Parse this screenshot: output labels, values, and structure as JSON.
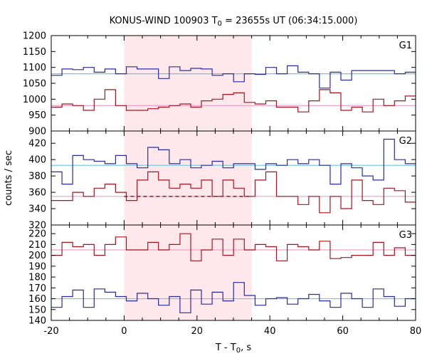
{
  "chart_data": {
    "type": "line",
    "title_main": "KONUS-WIND 100903 T",
    "title_sub": "0",
    "title_rest": " = 23655s UT (06:34:15.000)",
    "xlabel_main": "T - T",
    "xlabel_sub": "0",
    "xlabel_rest": ", s",
    "ylabel": "counts / sec",
    "xlim": [
      -20,
      80
    ],
    "xticks": [
      -20,
      0,
      20,
      40,
      60,
      80
    ],
    "shaded_interval": [
      0,
      35
    ],
    "bin_width": 2.944,
    "bin_start": -20,
    "colors": {
      "blue": "#2a2aa8",
      "red": "#a8141e",
      "cyan": "#66c8e6",
      "pink": "#f0a0c8",
      "shade": "#ffe8ec",
      "dashed": "#7a0f0f"
    },
    "panels": [
      {
        "label": "G1",
        "ylim": [
          900,
          1200
        ],
        "yticks": [
          900,
          950,
          1000,
          1050,
          1100,
          1150,
          1200
        ],
        "series": [
          {
            "color_key": "blue",
            "background_level": 1080,
            "values": [
              1075,
              1095,
              1093,
              1100,
              1085,
              1095,
              1080,
              1102,
              1095,
              1095,
              1065,
              1102,
              1090,
              1097,
              1095,
              1075,
              1080,
              1055,
              1080,
              1078,
              1100,
              1080,
              1105,
              1085,
              1080,
              1035,
              1085,
              1060,
              1090,
              1090,
              1090,
              1090,
              1080,
              1085,
              1085
            ]
          },
          {
            "color_key": "red",
            "background_level": 980,
            "values": [
              975,
              985,
              980,
              965,
              1000,
              1030,
              980,
              965,
              965,
              970,
              975,
              980,
              985,
              975,
              995,
              1000,
              1015,
              1020,
              990,
              985,
              995,
              975,
              975,
              960,
              995,
              1030,
              1020,
              965,
              975,
              960,
              1000,
              980,
              995,
              1010,
              985
            ]
          }
        ]
      },
      {
        "label": "G2",
        "ylim": [
          320,
          435
        ],
        "yticks": [
          320,
          340,
          360,
          380,
          400,
          420
        ],
        "dashed_level": 355,
        "series": [
          {
            "color_key": "blue",
            "background_level": 393,
            "values": [
              385,
              370,
              405,
              400,
              398,
              395,
              405,
              395,
              390,
              415,
              412,
              395,
              400,
              390,
              393,
              398,
              390,
              395,
              395,
              388,
              395,
              393,
              400,
              395,
              400,
              393,
              370,
              395,
              390,
              380,
              375,
              425,
              400,
              395,
              405
            ]
          },
          {
            "color_key": "red",
            "background_level": 355,
            "values": [
              350,
              350,
              360,
              355,
              365,
              370,
              360,
              350,
              375,
              385,
              375,
              365,
              370,
              365,
              375,
              355,
              375,
              365,
              355,
              375,
              385,
              355,
              355,
              345,
              355,
              335,
              355,
              340,
              375,
              350,
              345,
              365,
              362,
              348,
              355
            ]
          }
        ]
      },
      {
        "label": "G3",
        "ylim": [
          140,
          228
        ],
        "yticks": [
          140,
          150,
          160,
          170,
          180,
          190,
          200,
          210,
          220
        ],
        "series": [
          {
            "color_key": "red",
            "background_level": 205,
            "values": [
              200,
              212,
              208,
              210,
              200,
              210,
              217,
              205,
              205,
              212,
              205,
              210,
              220,
              195,
              205,
              215,
              200,
              215,
              205,
              210,
              208,
              195,
              210,
              208,
              205,
              213,
              197,
              198,
              200,
              200,
              212,
              200,
              207,
              200,
              193,
              203
            ]
          },
          {
            "color_key": "blue",
            "background_level": 160,
            "values": [
              152,
              162,
              168,
              152,
              169,
              166,
              162,
              158,
              165,
              160,
              154,
              162,
              147,
              168,
              155,
              166,
              158,
              175,
              163,
              154,
              160,
              161,
              155,
              160,
              164,
              158,
              152,
              165,
              160,
              152,
              169,
              162,
              153,
              160,
              165,
              160
            ]
          }
        ]
      }
    ]
  }
}
